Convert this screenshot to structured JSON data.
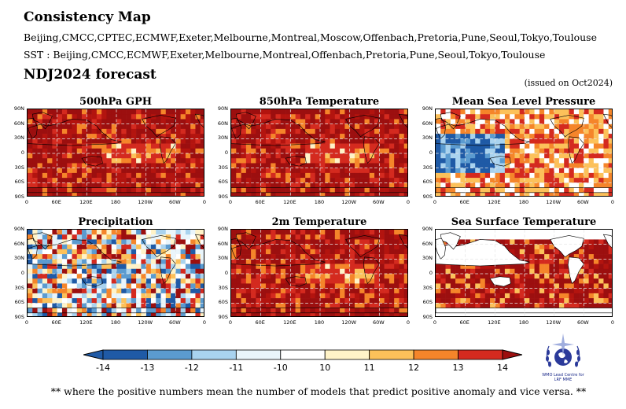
{
  "header": {
    "title": "Consistency Map",
    "models_line": "Beijing,CMCC,CPTEC,ECMWF,Exeter,Melbourne,Montreal,Moscow,Offenbach,Pretoria,Pune,Seoul,Tokyo,Toulouse",
    "sst_line": "SST : Beijing,CMCC,ECMWF,Exeter,Melbourne,Montreal,Offenbach,Pretoria,Pune,Seoul,Tokyo,Toulouse",
    "forecast": "NDJ2024 forecast",
    "issued": "(issued on Oct2024)"
  },
  "panels": [
    {
      "title": "500hPa GPH",
      "palette": "warm"
    },
    {
      "title": "850hPa Temperature",
      "palette": "warm"
    },
    {
      "title": "Mean Sea Level Pressure",
      "palette": "mixed-pressure"
    },
    {
      "title": "Precipitation",
      "palette": "mixed-precip"
    },
    {
      "title": "2m Temperature",
      "palette": "warm"
    },
    {
      "title": "Sea Surface Temperature",
      "palette": "sst"
    }
  ],
  "axes": {
    "lat_labels": [
      "90N",
      "60N",
      "30N",
      "0",
      "30S",
      "60S",
      "90S"
    ],
    "lon_labels": [
      "0",
      "60E",
      "120E",
      "180",
      "120W",
      "60W",
      "0"
    ]
  },
  "colorbar": {
    "labels": [
      "-14",
      "-13",
      "-12",
      "-11",
      "-10",
      "10",
      "11",
      "12",
      "13",
      "14"
    ],
    "colors": [
      "#1f5aa6",
      "#5b9bd0",
      "#a9d3ef",
      "#e9f5fb",
      "#ffffff",
      "#fff3c8",
      "#fcc15a",
      "#f5852a",
      "#d42a1f"
    ]
  },
  "logo_text": {
    "line1": "WMO Lead Centre for",
    "line2": "LRF MME"
  },
  "footnote": "** where the positive numbers mean the number of models that predict positive anomaly and vice versa. **"
}
